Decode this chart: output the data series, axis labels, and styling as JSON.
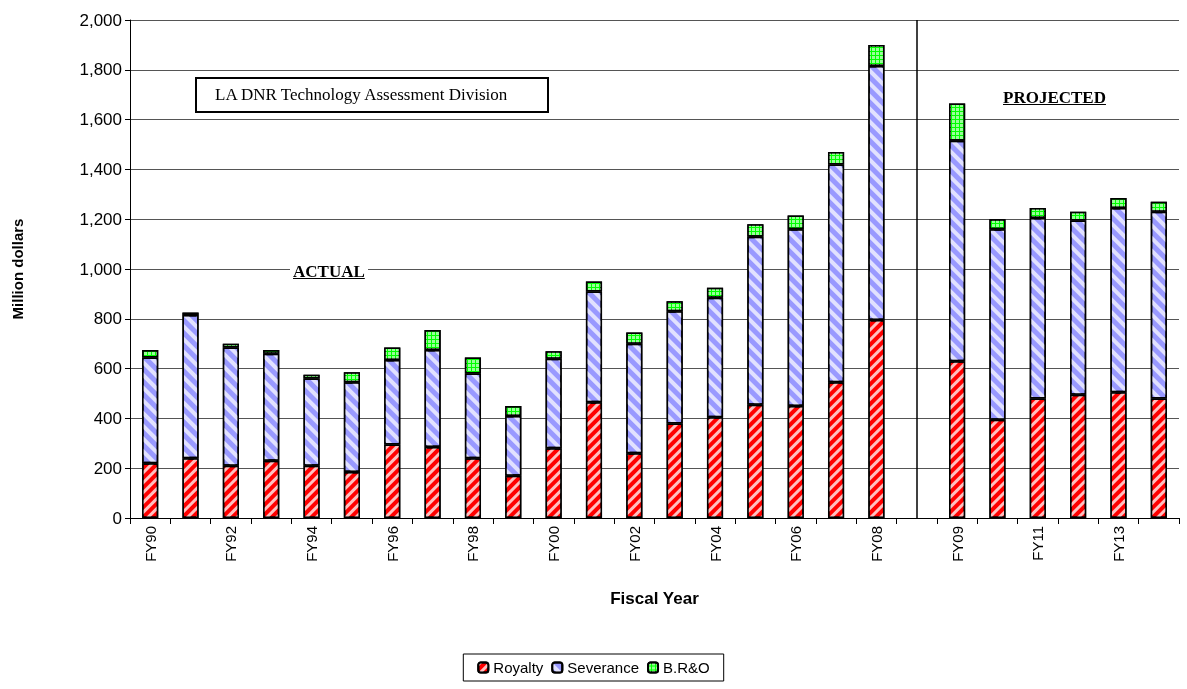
{
  "chart_data": {
    "type": "bar",
    "stacked": true,
    "xlabel": "Fiscal Year",
    "ylabel": "Million dollars",
    "categories": [
      "FY90",
      null,
      "FY92",
      null,
      "FY94",
      null,
      "FY96",
      null,
      "FY98",
      null,
      "FY00",
      null,
      "FY02",
      null,
      "FY04",
      null,
      "FY06",
      null,
      "FY08",
      null,
      "FY09",
      null,
      "FY11",
      null,
      "FY13",
      null
    ],
    "series": [
      {
        "name": "Royalty",
        "color": "#ff0000",
        "values": [
          220,
          240,
          210,
          230,
          210,
          185,
          295,
          285,
          240,
          170,
          280,
          465,
          260,
          380,
          405,
          455,
          450,
          545,
          795,
          null,
          630,
          395,
          480,
          495,
          505,
          480
        ]
      },
      {
        "name": "Severance",
        "color": "#9999ff",
        "values": [
          425,
          575,
          475,
          430,
          350,
          360,
          340,
          390,
          340,
          240,
          360,
          445,
          440,
          450,
          480,
          675,
          710,
          875,
          1020,
          null,
          885,
          765,
          725,
          700,
          740,
          750
        ]
      },
      {
        "name": "B.R&O",
        "color": "#00ff00",
        "values": [
          30,
          10,
          15,
          15,
          15,
          40,
          50,
          80,
          65,
          40,
          30,
          40,
          45,
          40,
          40,
          50,
          55,
          50,
          85,
          null,
          150,
          40,
          40,
          35,
          40,
          40
        ]
      }
    ],
    "ylim": [
      0,
      2000
    ],
    "yticks": [
      0,
      200,
      400,
      600,
      800,
      {
        "value": 1000,
        "label": "1,000"
      },
      {
        "value": 1200,
        "label": "1,200"
      },
      {
        "value": 1400,
        "label": "1,400"
      },
      {
        "value": 1600,
        "label": "1,600"
      },
      {
        "value": 1800,
        "label": "1,800"
      },
      {
        "value": 2000,
        "label": "2,000"
      }
    ],
    "grid": "y",
    "legend": "bottom",
    "annotations": [
      "LA DNR Technology Assessment Division",
      "ACTUAL",
      "PROJECTED"
    ]
  }
}
